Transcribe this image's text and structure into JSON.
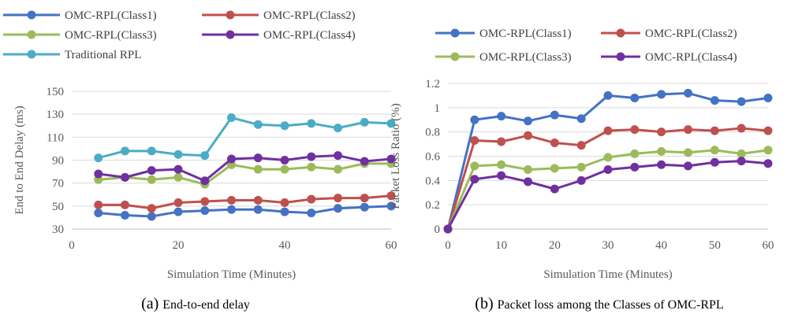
{
  "chart_data": [
    {
      "type": "line",
      "x": [
        5,
        10,
        15,
        20,
        25,
        30,
        35,
        40,
        45,
        50,
        55,
        60
      ],
      "series": [
        {
          "name": "OMC-RPL(Class1)",
          "color": "#4472C4",
          "values": [
            44,
            42,
            41,
            45,
            46,
            47,
            47,
            45,
            44,
            48,
            49,
            50
          ]
        },
        {
          "name": "OMC-RPL(Class2)",
          "color": "#C0504D",
          "values": [
            51,
            51,
            48,
            53,
            54,
            55,
            55,
            53,
            56,
            57,
            57,
            59
          ]
        },
        {
          "name": "OMC-RPL(Class3)",
          "color": "#9BBB59",
          "values": [
            73,
            75,
            73,
            75,
            69,
            86,
            82,
            82,
            84,
            82,
            87,
            87
          ]
        },
        {
          "name": "OMC-RPL(Class4)",
          "color": "#7030A0",
          "values": [
            78,
            75,
            81,
            82,
            72,
            91,
            92,
            90,
            93,
            94,
            89,
            91
          ]
        },
        {
          "name": "Traditional RPL",
          "color": "#4BACC6",
          "values": [
            92,
            98,
            98,
            95,
            94,
            127,
            121,
            120,
            122,
            118,
            123,
            122
          ]
        }
      ],
      "xlabel": "Simulation Time (Minutes)",
      "ylabel": "End to End Delay (ms)",
      "xlim": [
        0,
        60
      ],
      "ylim": [
        30,
        150
      ],
      "xticks": [
        0,
        20,
        40,
        60
      ],
      "yticks": [
        30,
        50,
        70,
        90,
        110,
        130,
        150
      ],
      "grid": "horizontal",
      "legend": "top",
      "caption_letter": "(a)",
      "caption_text": "End-to-end delay"
    },
    {
      "type": "line",
      "x": [
        0,
        5,
        10,
        15,
        20,
        25,
        30,
        35,
        40,
        45,
        50,
        55,
        60
      ],
      "series": [
        {
          "name": "OMC-RPL(Class1)",
          "color": "#4472C4",
          "values": [
            0,
            0.9,
            0.93,
            0.89,
            0.94,
            0.91,
            1.1,
            1.08,
            1.11,
            1.12,
            1.06,
            1.05,
            1.08
          ]
        },
        {
          "name": "OMC-RPL(Class2)",
          "color": "#C0504D",
          "values": [
            0,
            0.73,
            0.72,
            0.77,
            0.71,
            0.69,
            0.81,
            0.82,
            0.8,
            0.82,
            0.81,
            0.83,
            0.81
          ]
        },
        {
          "name": "OMC-RPL(Class3)",
          "color": "#9BBB59",
          "values": [
            0,
            0.52,
            0.53,
            0.49,
            0.5,
            0.51,
            0.59,
            0.62,
            0.64,
            0.63,
            0.65,
            0.62,
            0.65
          ]
        },
        {
          "name": "OMC-RPL(Class4)",
          "color": "#7030A0",
          "values": [
            0,
            0.41,
            0.44,
            0.39,
            0.33,
            0.4,
            0.49,
            0.51,
            0.53,
            0.52,
            0.55,
            0.56,
            0.54
          ]
        }
      ],
      "xlabel": "Simulation Time (Minutes)",
      "ylabel": "Packet Loss Ratio (%)",
      "xlim": [
        0,
        60
      ],
      "ylim": [
        0,
        1.2
      ],
      "xticks": [
        0,
        10,
        20,
        30,
        40,
        50,
        60
      ],
      "yticks": [
        0,
        0.2,
        0.4,
        0.6,
        0.8,
        1,
        1.2
      ],
      "grid": "horizontal",
      "legend": "top",
      "caption_letter": "(b)",
      "caption_text": "Packet loss among the Classes of OMC-RPL"
    }
  ]
}
